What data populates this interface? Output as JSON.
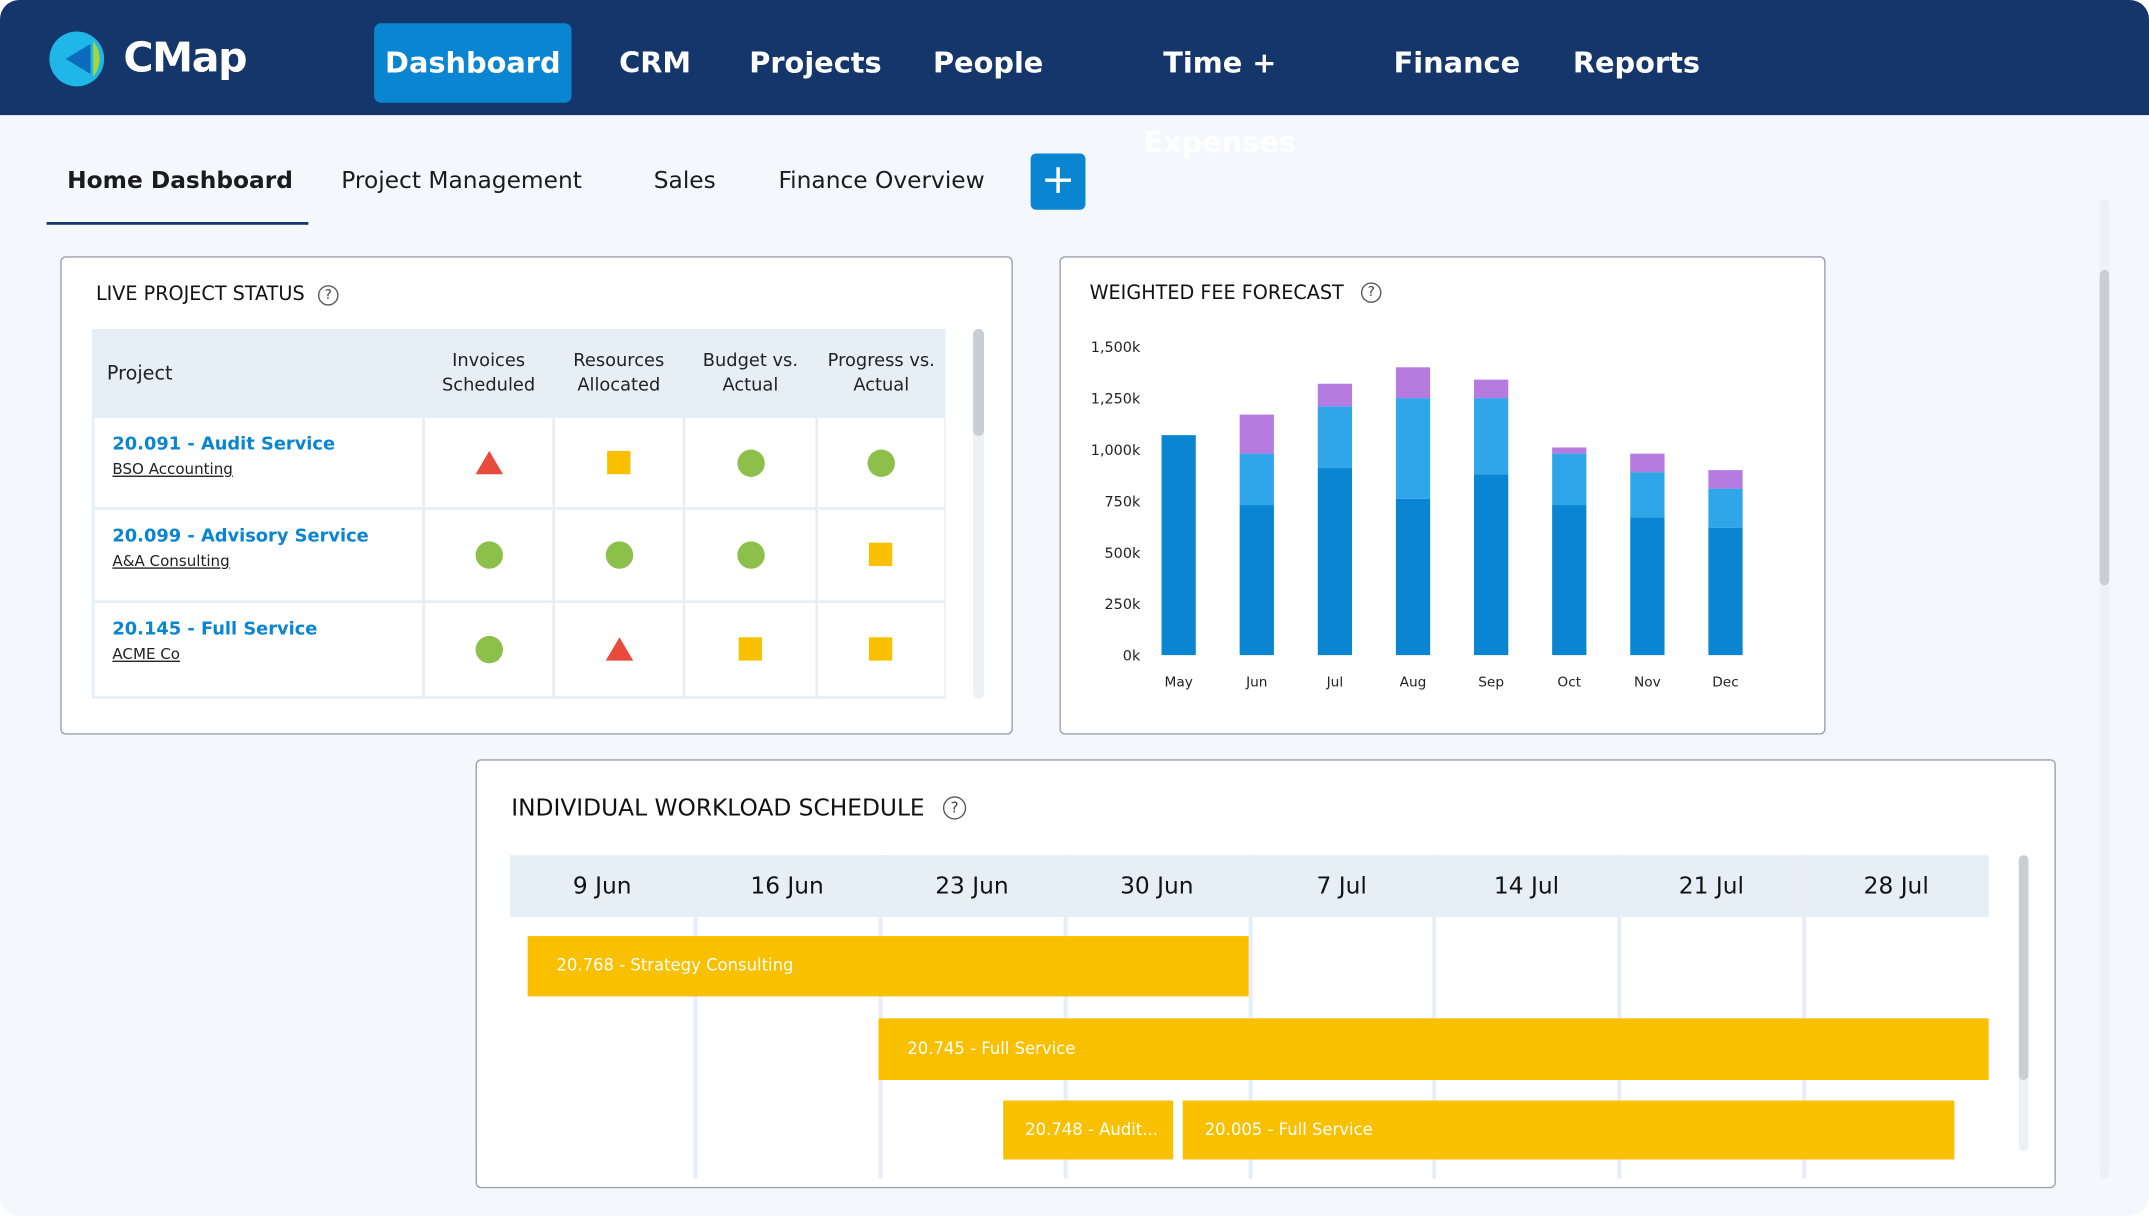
{
  "logo": "CMap",
  "nav": [
    "Dashboard",
    "CRM",
    "Projects",
    "People",
    "Time + Expenses",
    "Finance",
    "Reports"
  ],
  "tabs": [
    "Home Dashboard",
    "Project Management",
    "Sales",
    "Finance Overview"
  ],
  "add_button": "+",
  "project_status": {
    "title": "LIVE PROJECT STATUS",
    "help": "?",
    "columns": [
      "Project",
      "Invoices Scheduled",
      "Resources Allocated",
      "Budget vs. Actual",
      "Progress vs. Actual"
    ],
    "rows": [
      {
        "project": "20.091 - Audit Service",
        "client": "BSO Accounting",
        "statuses": [
          "red",
          "amber",
          "green",
          "green"
        ]
      },
      {
        "project": "20.099 - Advisory Service",
        "client": "A&A Consulting",
        "statuses": [
          "green",
          "green",
          "green",
          "amber"
        ]
      },
      {
        "project": "20.145 - Full Service",
        "client": "ACME Co",
        "statuses": [
          "green",
          "red",
          "amber",
          "amber"
        ]
      }
    ]
  },
  "chart_data": {
    "type": "stacked-bar",
    "title": "WEIGHTED FEE FORECAST",
    "help": "?",
    "categories": [
      "May",
      "Jun",
      "Jul",
      "Aug",
      "Sep",
      "Oct",
      "Nov",
      "Dec"
    ],
    "series": [
      {
        "color": "#0a85d1",
        "values": [
          1070000,
          730000,
          910000,
          760000,
          880000,
          730000,
          670000,
          620000
        ]
      },
      {
        "color": "#2fa6ea",
        "values": [
          0,
          250000,
          300000,
          490000,
          370000,
          250000,
          220000,
          190000
        ]
      },
      {
        "color": "#b57be0",
        "values": [
          0,
          190000,
          110000,
          150000,
          90000,
          30000,
          90000,
          90000
        ]
      }
    ],
    "ylim": [
      0,
      1500000
    ],
    "yticks": [
      {
        "value": 0,
        "label": "0k"
      },
      {
        "value": 250000,
        "label": "250k"
      },
      {
        "value": 500000,
        "label": "500k"
      },
      {
        "value": 750000,
        "label": "750k"
      },
      {
        "value": 1000000,
        "label": "1,000k"
      },
      {
        "value": 1250000,
        "label": "1,250k"
      },
      {
        "value": 1500000,
        "label": "1,500k"
      }
    ],
    "grid": false
  },
  "workload": {
    "title": "INDIVIDUAL WORKLOAD SCHEDULE",
    "help": "?",
    "weeks": [
      "9 Jun",
      "16 Jun",
      "23 Jun",
      "30 Jun",
      "7 Jul",
      "14 Jul",
      "21 Jul",
      "28 Jul"
    ],
    "bars": [
      "20.768 - Strategy Consulting",
      "20.745 - Full Service",
      "20.748 - Audit...",
      "20.005 - Full Service"
    ]
  }
}
